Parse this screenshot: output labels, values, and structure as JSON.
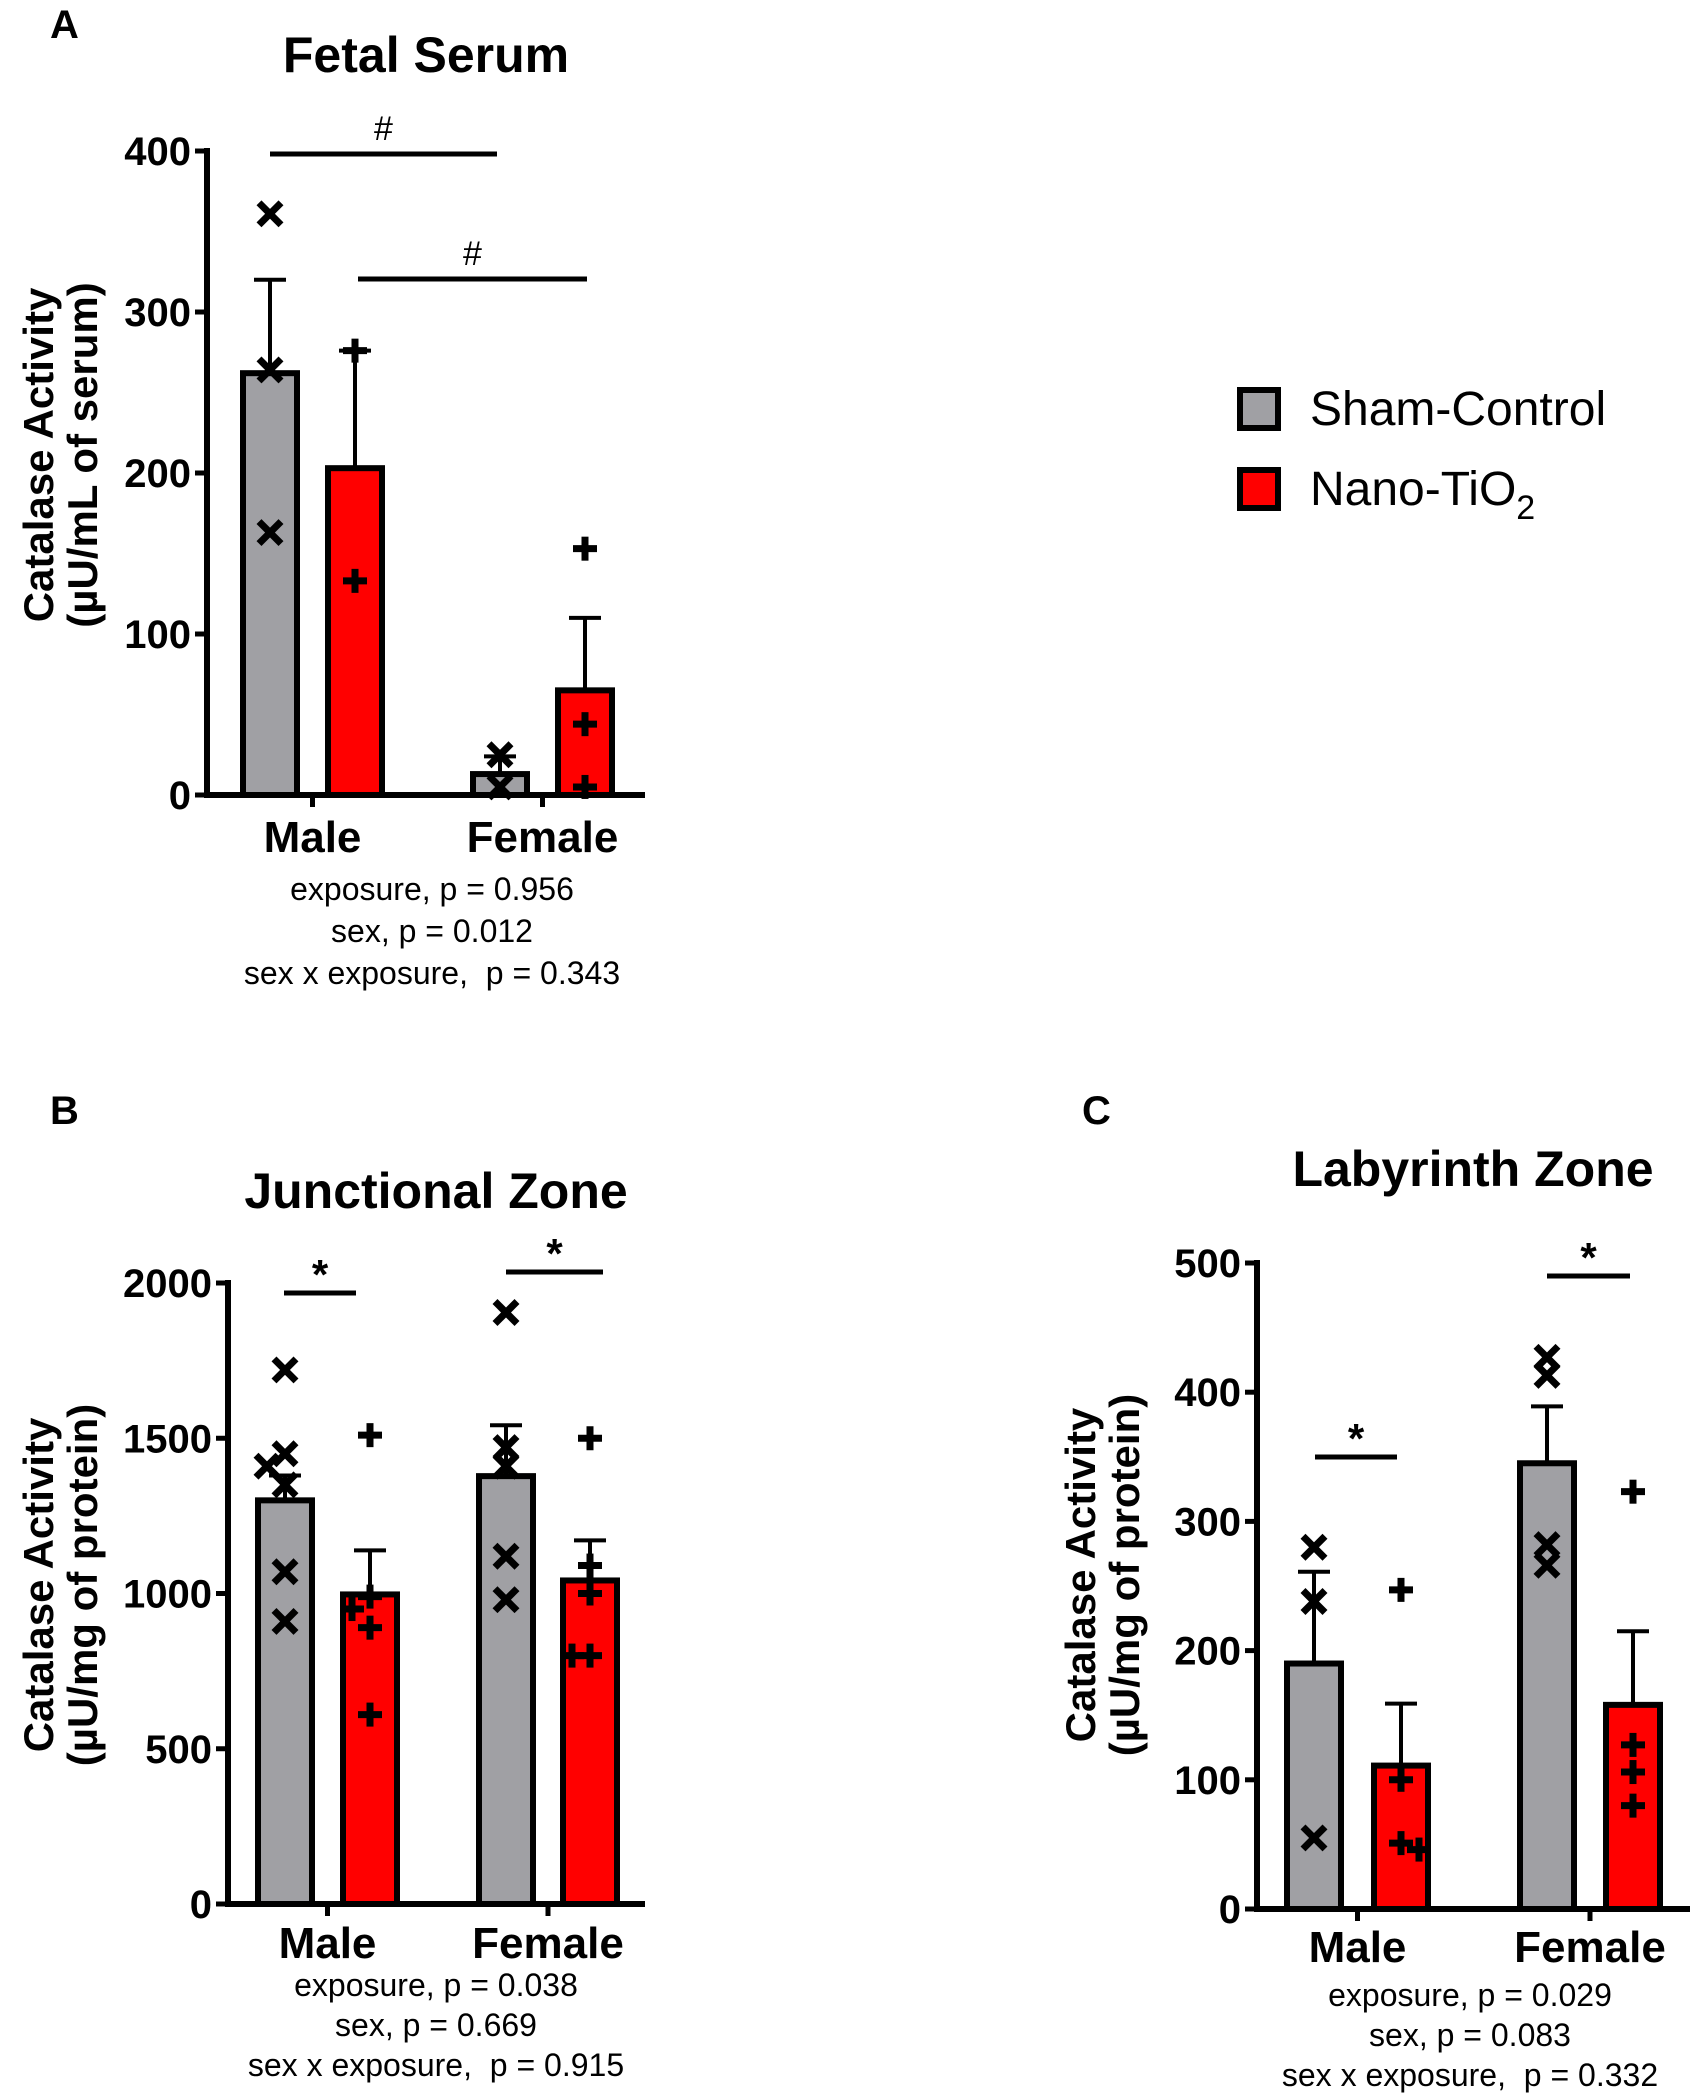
{
  "legend": {
    "items": [
      {
        "label": "Sham-Control",
        "color": "#a0a0a4"
      },
      {
        "label": "Nano-TiO",
        "subscript": "2",
        "color": "#ff0000"
      }
    ]
  },
  "chart_data": [
    {
      "panel": "A",
      "type": "bar",
      "title": "Fetal Serum",
      "ylabel_line1": "Catalase Activity",
      "ylabel_line2": "(µU/mL of serum)",
      "xlabel": "",
      "categories": [
        "Male",
        "Female"
      ],
      "ylim": [
        0,
        400
      ],
      "yticks": [
        0,
        100,
        200,
        300,
        400
      ],
      "grid": false,
      "series": [
        {
          "name": "Sham-Control",
          "marker": "x",
          "values": [
            262,
            13
          ],
          "error_upper": [
            320,
            24
          ],
          "points": [
            [
              361,
              264,
              163
            ],
            [
              25,
              5
            ]
          ]
        },
        {
          "name": "Nano-TiO2",
          "marker": "+",
          "values": [
            203,
            65
          ],
          "error_upper": [
            276,
            110
          ],
          "points": [
            [
              276,
              133
            ],
            [
              153,
              44,
              5
            ]
          ]
        }
      ],
      "significance": [
        {
          "symbol": "#",
          "from": "Male Sham-Control",
          "to": "Female Sham-Control"
        },
        {
          "symbol": "#",
          "from": "Male Nano-TiO2",
          "to": "Female Nano-TiO2"
        }
      ],
      "stats": [
        "exposure, p = 0.956",
        "sex, p = 0.012",
        "sex x exposure,  p = 0.343"
      ]
    },
    {
      "panel": "B",
      "type": "bar",
      "title": "Junctional Zone",
      "ylabel_line1": "Catalase Activity",
      "ylabel_line2": "(µU/mg of protein)",
      "xlabel": "",
      "categories": [
        "Male",
        "Female"
      ],
      "ylim": [
        0,
        2000
      ],
      "yticks": [
        0,
        500,
        1000,
        1500,
        2000
      ],
      "grid": false,
      "series": [
        {
          "name": "Sham-Control",
          "marker": "x",
          "values": [
            1300,
            1378
          ],
          "error_upper": [
            1380,
            1542
          ],
          "points": [
            [
              1720,
              1450,
              1410,
              1350,
              1070,
              910
            ],
            [
              1905,
              1470,
              1410,
              1120,
              980
            ]
          ]
        },
        {
          "name": "Nano-TiO2",
          "marker": "+",
          "values": [
            997,
            1042
          ],
          "error_upper": [
            1139,
            1171
          ],
          "points": [
            [
              1510,
              990,
              950,
              890,
              610
            ],
            [
              1500,
              1090,
              1000,
              800,
              800
            ]
          ]
        }
      ],
      "significance": [
        {
          "symbol": "*",
          "from": "Male Sham-Control",
          "to": "Male Nano-TiO2"
        },
        {
          "symbol": "*",
          "from": "Female Sham-Control",
          "to": "Female Nano-TiO2"
        }
      ],
      "stats": [
        "exposure, p = 0.038",
        "sex, p = 0.669",
        "sex x exposure,  p = 0.915"
      ]
    },
    {
      "panel": "C",
      "type": "bar",
      "title": "Labyrinth Zone",
      "ylabel_line1": "Catalase Activity",
      "ylabel_line2": "(µU/mg of protein)",
      "xlabel": "",
      "categories": [
        "Male",
        "Female"
      ],
      "ylim": [
        0,
        500
      ],
      "yticks": [
        0,
        100,
        200,
        300,
        400,
        500
      ],
      "grid": false,
      "series": [
        {
          "name": "Sham-Control",
          "marker": "x",
          "values": [
            190,
            345
          ],
          "error_upper": [
            261,
            389
          ],
          "points": [
            [
              280,
              238,
              55
            ],
            [
              427,
              413,
              282,
              266
            ]
          ]
        },
        {
          "name": "Nano-TiO2",
          "marker": "+",
          "values": [
            111,
            158
          ],
          "error_upper": [
            159,
            215
          ],
          "points": [
            [
              247,
              100,
              51,
              46
            ],
            [
              323,
              127,
              106,
              80
            ]
          ]
        }
      ],
      "significance": [
        {
          "symbol": "*",
          "from": "Male Sham-Control",
          "to": "Male Nano-TiO2"
        },
        {
          "symbol": "*",
          "from": "Female Sham-Control",
          "to": "Female Nano-TiO2"
        }
      ],
      "stats": [
        "exposure, p = 0.029",
        "sex, p = 0.083",
        "sex x exposure,  p = 0.332"
      ]
    }
  ]
}
